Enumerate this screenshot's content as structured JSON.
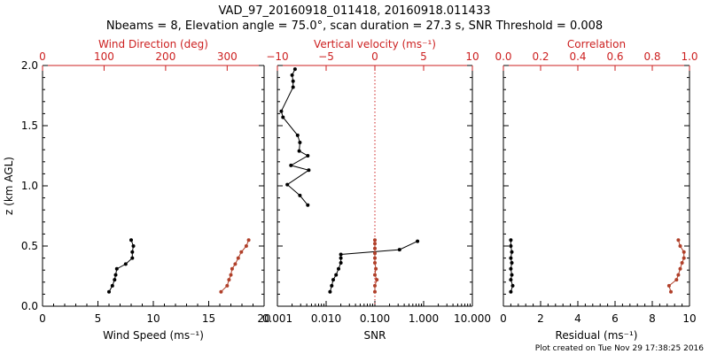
{
  "title_line1": "VAD_97_20160918_011418, 20160918.011433",
  "title_line2": "Nbeams = 8, Elevation angle = 75.0°, scan duration = 27.3 s, SNR Threshold = 0.008",
  "footer": "Plot created on Tue Nov 29 17:38:25 2016",
  "colors": {
    "black": "#000000",
    "red": "#cc1f1f",
    "brown": "#b0402a"
  },
  "chart_data": [
    {
      "type": "line",
      "panel": "wind",
      "ylabel": "z (km AGL)",
      "ylim": [
        0,
        2
      ],
      "yticks": [
        0.0,
        0.5,
        1.0,
        1.5,
        2.0
      ],
      "ytick_labels": [
        "0.0",
        "0.5",
        "1.0",
        "1.5",
        "2.0"
      ],
      "xlabel": "Wind Speed (ms⁻¹)",
      "xlim": [
        0,
        20
      ],
      "xticks": [
        0,
        5,
        10,
        15,
        20
      ],
      "xtick_labels": [
        "0",
        "5",
        "10",
        "15",
        "20"
      ],
      "top_xlabel": "Wind Direction (deg)",
      "top_xlim": [
        0,
        360
      ],
      "top_xticks": [
        0,
        100,
        200,
        300
      ],
      "top_xtick_labels": [
        "0",
        "100",
        "200",
        "300"
      ],
      "series": [
        {
          "name": "Wind Speed",
          "axis": "bottom",
          "color": "#000000",
          "points": [
            [
              6.0,
              0.12
            ],
            [
              6.3,
              0.17
            ],
            [
              6.5,
              0.22
            ],
            [
              6.6,
              0.26
            ],
            [
              6.7,
              0.31
            ],
            [
              7.5,
              0.35
            ],
            [
              8.1,
              0.4
            ],
            [
              8.1,
              0.45
            ],
            [
              8.2,
              0.5
            ],
            [
              8.0,
              0.55
            ]
          ]
        },
        {
          "name": "Wind Direction",
          "axis": "top",
          "color": "#b0402a",
          "points": [
            [
              290,
              0.12
            ],
            [
              300,
              0.17
            ],
            [
              303,
              0.22
            ],
            [
              306,
              0.26
            ],
            [
              308,
              0.31
            ],
            [
              313,
              0.35
            ],
            [
              318,
              0.4
            ],
            [
              323,
              0.45
            ],
            [
              331,
              0.5
            ],
            [
              335,
              0.55
            ]
          ]
        }
      ]
    },
    {
      "type": "line",
      "panel": "snr",
      "xscale": "log",
      "ylim": [
        0,
        2
      ],
      "xlabel": "SNR",
      "xlim": [
        0.001,
        10
      ],
      "xticks": [
        0.001,
        0.01,
        0.1,
        1,
        10
      ],
      "xtick_labels": [
        "0.001",
        "0.010",
        "0.100",
        "1.000",
        "10.000"
      ],
      "top_xlabel": "Vertical velocity (ms⁻¹)",
      "top_xlim": [
        -10,
        10
      ],
      "top_xticks": [
        -10,
        -5,
        0,
        5,
        10
      ],
      "top_xtick_labels": [
        "−10",
        "−5",
        "0",
        "5",
        "10"
      ],
      "threshold_line": {
        "axis": "top",
        "value": 0,
        "style": "dotted"
      },
      "series": [
        {
          "name": "SNR",
          "axis": "bottom",
          "color": "#000000",
          "points": [
            [
              0.012,
              0.12
            ],
            [
              0.013,
              0.17
            ],
            [
              0.014,
              0.22
            ],
            [
              0.016,
              0.26
            ],
            [
              0.018,
              0.31
            ],
            [
              0.02,
              0.36
            ],
            [
              0.02,
              0.4
            ],
            [
              0.02,
              0.43
            ],
            [
              0.32,
              0.47
            ],
            [
              0.75,
              0.54
            ]
          ]
        },
        {
          "name": "SNR upper",
          "axis": "bottom",
          "color": "#000000",
          "points": [
            [
              0.0042,
              0.84
            ],
            [
              0.0029,
              0.92
            ],
            [
              0.0016,
              1.01
            ],
            [
              0.0044,
              1.13
            ],
            [
              0.0019,
              1.17
            ],
            [
              0.0042,
              1.25
            ],
            [
              0.0028,
              1.29
            ],
            [
              0.0029,
              1.36
            ],
            [
              0.0026,
              1.42
            ],
            [
              0.0013,
              1.57
            ],
            [
              0.0012,
              1.62
            ],
            [
              0.0021,
              1.82
            ],
            [
              0.0021,
              1.87
            ],
            [
              0.002,
              1.92
            ],
            [
              0.0023,
              1.97
            ]
          ]
        },
        {
          "name": "Vertical velocity",
          "axis": "top",
          "color": "#b0402a",
          "points": [
            [
              0.0,
              0.12
            ],
            [
              0.0,
              0.17
            ],
            [
              0.2,
              0.22
            ],
            [
              0.0,
              0.26
            ],
            [
              0.1,
              0.31
            ],
            [
              0.0,
              0.36
            ],
            [
              0.0,
              0.4
            ],
            [
              0.0,
              0.44
            ],
            [
              0.0,
              0.48
            ],
            [
              0.0,
              0.52
            ],
            [
              0.0,
              0.55
            ]
          ]
        }
      ]
    },
    {
      "type": "line",
      "panel": "residual",
      "ylim": [
        0,
        2
      ],
      "xlabel": "Residual (ms⁻¹)",
      "xlim": [
        0,
        10
      ],
      "xticks": [
        0,
        2,
        4,
        6,
        8,
        10
      ],
      "xtick_labels": [
        "0",
        "2",
        "4",
        "6",
        "8",
        "10"
      ],
      "top_xlabel": "Correlation",
      "top_xlim": [
        0,
        1
      ],
      "top_xticks": [
        0,
        0.2,
        0.4,
        0.6,
        0.8,
        1.0
      ],
      "top_xtick_labels": [
        "0.0",
        "0.2",
        "0.4",
        "0.6",
        "0.8",
        "1.0"
      ],
      "series": [
        {
          "name": "Residual",
          "axis": "bottom",
          "color": "#000000",
          "points": [
            [
              0.4,
              0.12
            ],
            [
              0.5,
              0.17
            ],
            [
              0.4,
              0.22
            ],
            [
              0.45,
              0.26
            ],
            [
              0.4,
              0.31
            ],
            [
              0.45,
              0.36
            ],
            [
              0.4,
              0.4
            ],
            [
              0.45,
              0.45
            ],
            [
              0.4,
              0.5
            ],
            [
              0.4,
              0.55
            ]
          ]
        },
        {
          "name": "Correlation",
          "axis": "top",
          "color": "#b0402a",
          "points": [
            [
              0.9,
              0.12
            ],
            [
              0.89,
              0.17
            ],
            [
              0.93,
              0.22
            ],
            [
              0.94,
              0.26
            ],
            [
              0.95,
              0.31
            ],
            [
              0.96,
              0.36
            ],
            [
              0.97,
              0.4
            ],
            [
              0.97,
              0.45
            ],
            [
              0.95,
              0.5
            ],
            [
              0.94,
              0.55
            ]
          ]
        }
      ]
    }
  ]
}
